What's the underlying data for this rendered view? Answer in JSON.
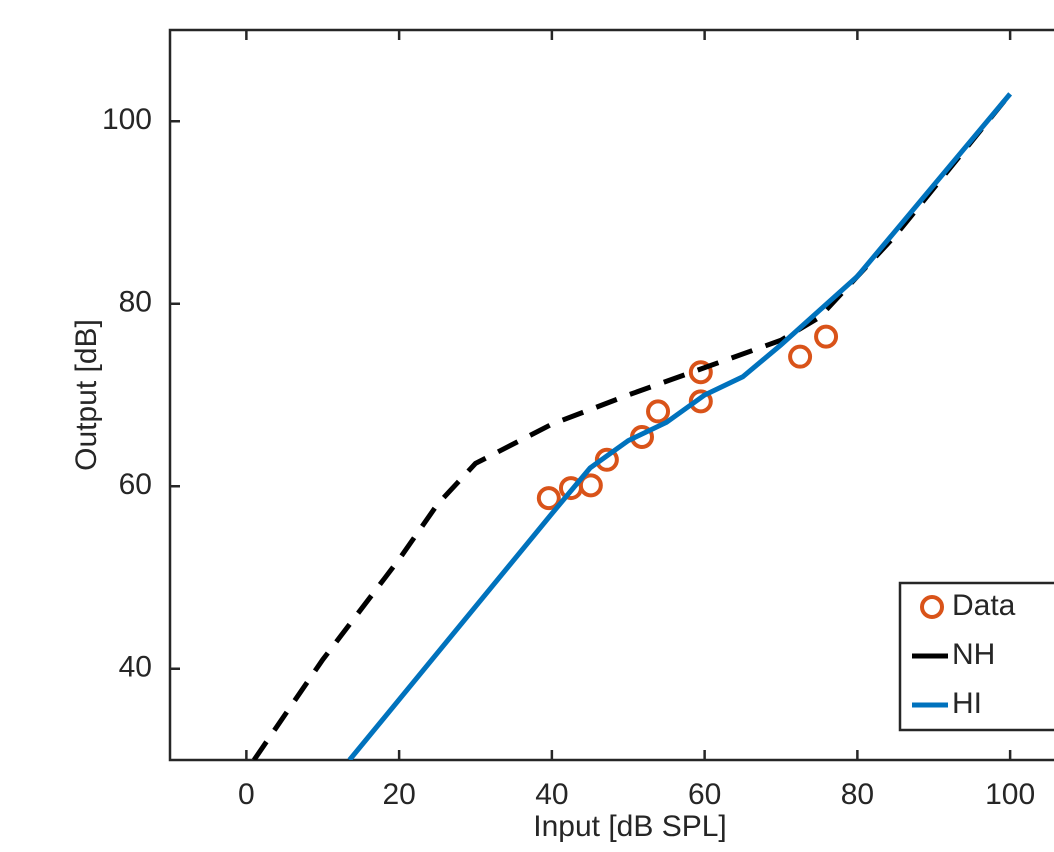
{
  "chart_data": {
    "type": "line",
    "x_label": "Input [dB SPL]",
    "y_label": "Output [dB]",
    "xlim": [
      -10,
      110
    ],
    "ylim": [
      30,
      110
    ],
    "xticks": [
      0,
      20,
      40,
      60,
      80,
      100
    ],
    "yticks": [
      40,
      60,
      80,
      100
    ],
    "legend": "southeast",
    "series": [
      {
        "name": "Data",
        "color": "#D95319",
        "style": "circle",
        "x": [
          39.6,
          42.5,
          45.1,
          47.2,
          51.8,
          53.9,
          59.5,
          59.5,
          72.5,
          75.9
        ],
        "values": [
          58.7,
          59.8,
          60.1,
          62.9,
          65.4,
          68.2,
          72.5,
          69.3,
          74.2,
          76.4
        ]
      },
      {
        "name": "NH",
        "color": "#000000",
        "style": "dashed",
        "x": [
          1,
          10,
          20,
          25,
          30,
          40,
          50,
          60,
          70,
          75,
          80,
          85,
          100
        ],
        "values": [
          30,
          41,
          52,
          58,
          62.5,
          66.8,
          70,
          73,
          76,
          78.5,
          83,
          87.5,
          103
        ]
      },
      {
        "name": "HI",
        "color": "#0072BD",
        "style": "solid",
        "x": [
          13.5,
          40,
          45,
          50,
          55,
          60,
          65,
          70,
          80,
          100
        ],
        "values": [
          30,
          57,
          62,
          65,
          67,
          70,
          72,
          75.5,
          83,
          103
        ]
      }
    ]
  }
}
